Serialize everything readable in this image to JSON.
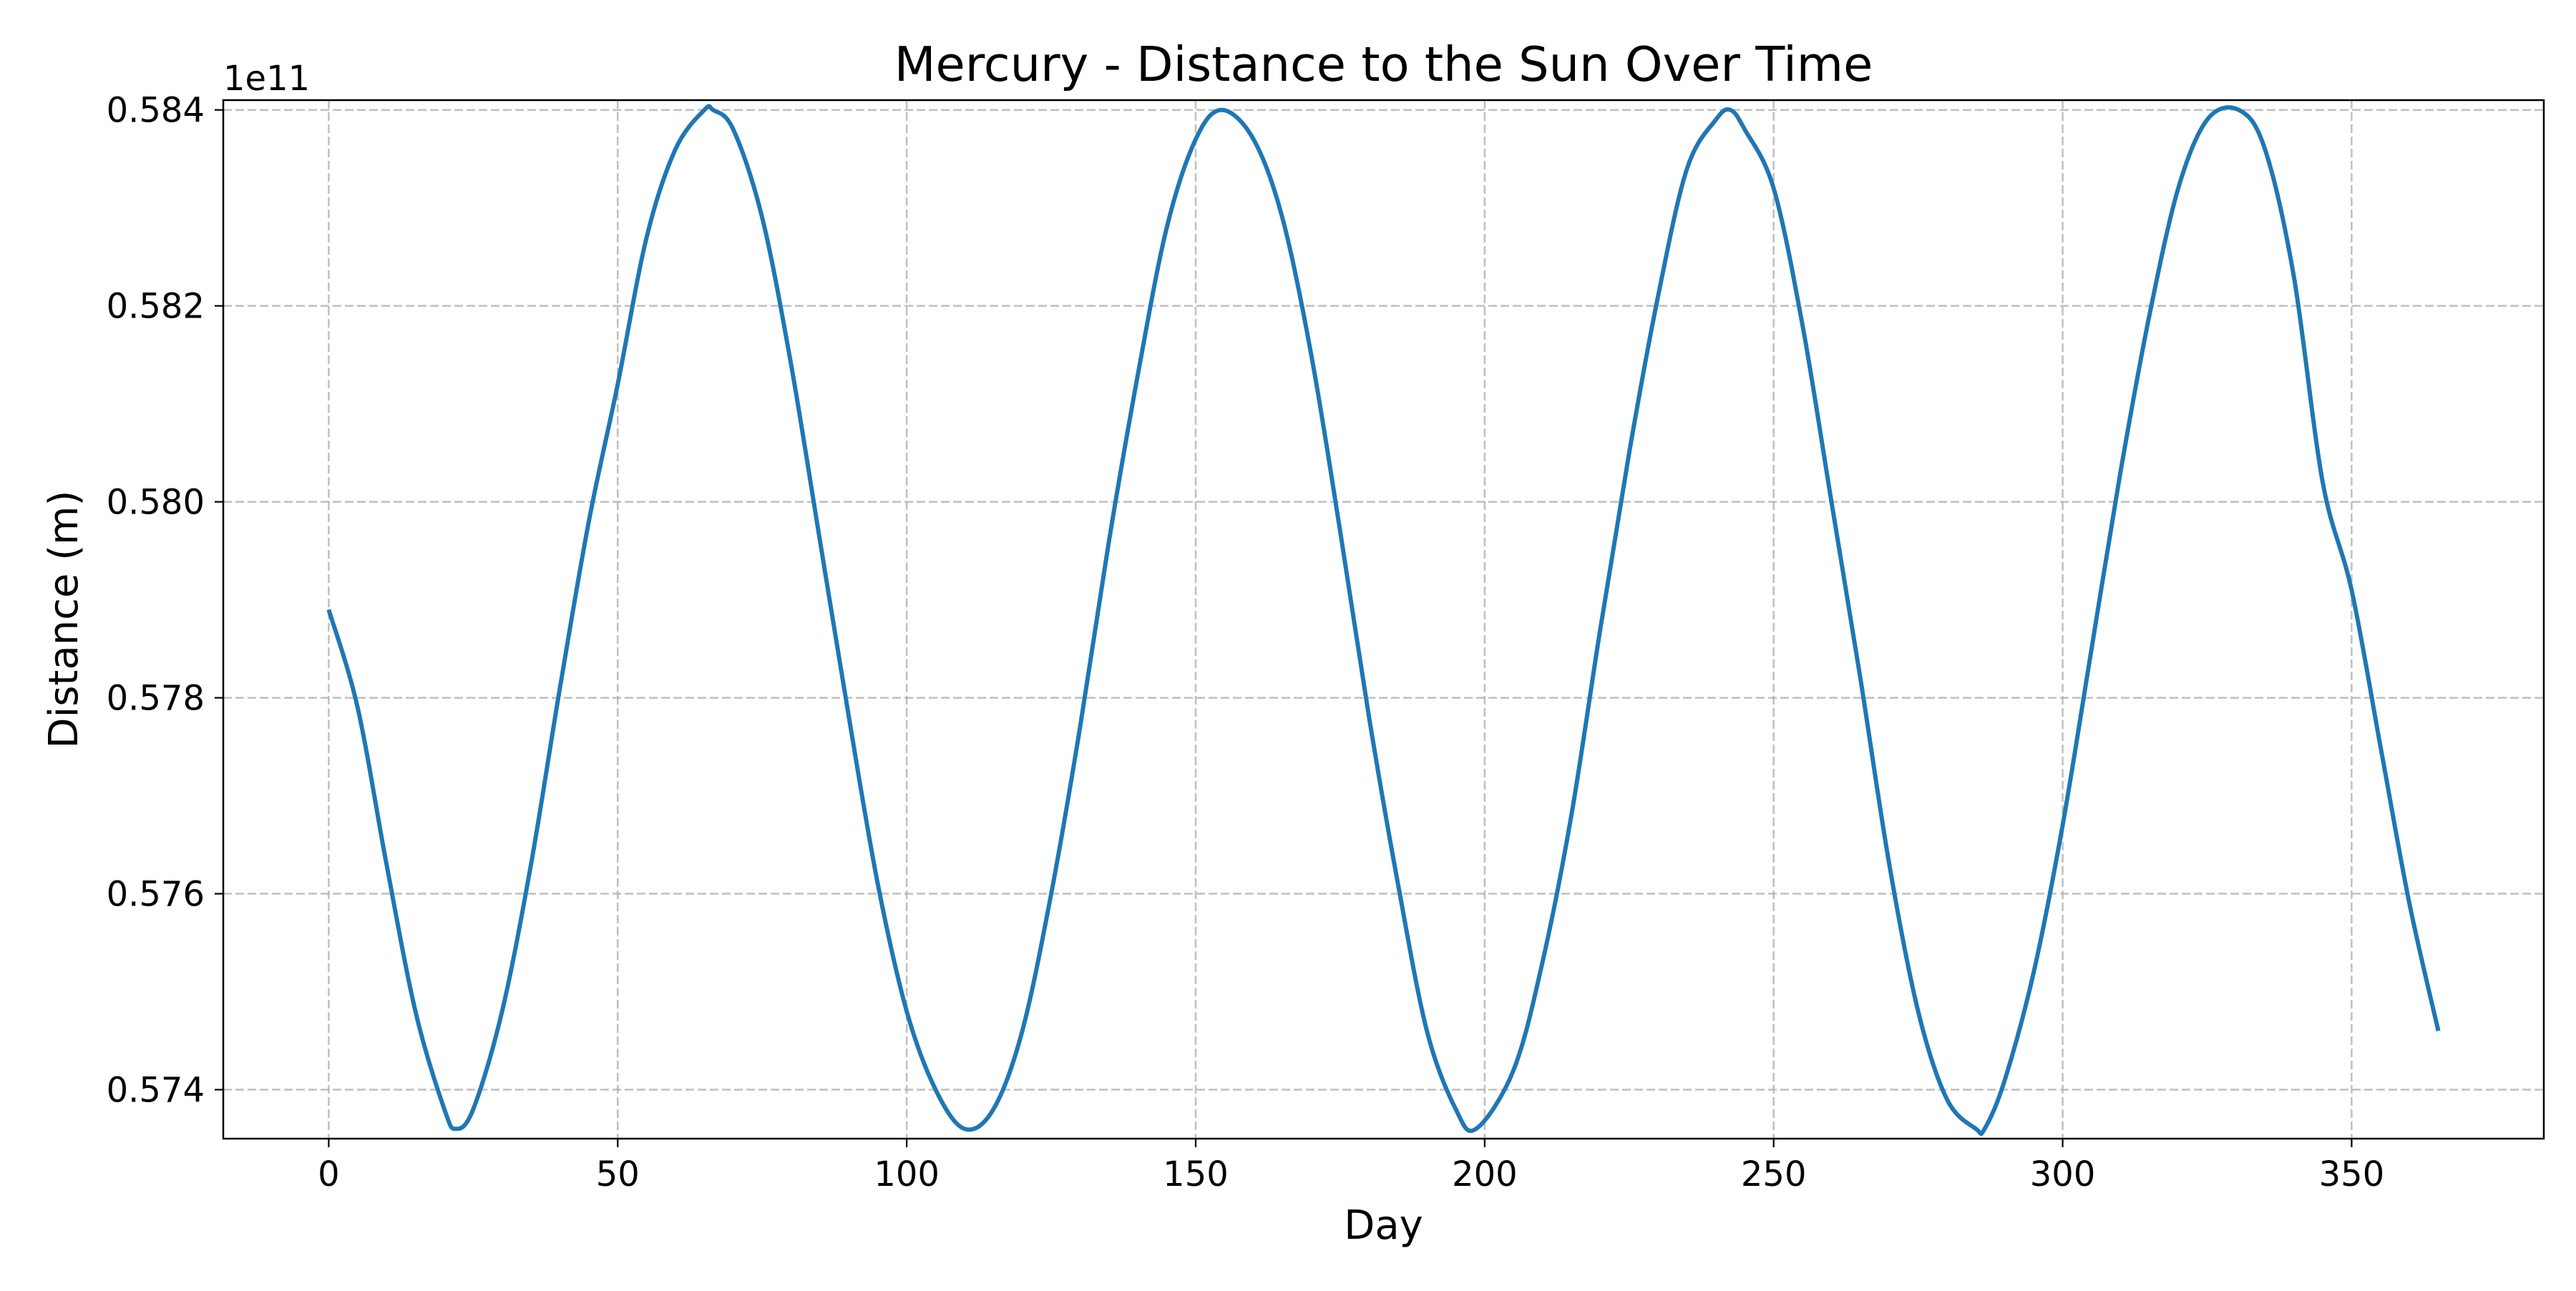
{
  "chart_data": {
    "type": "line",
    "title": "Mercury - Distance to the Sun Over Time",
    "xlabel": "Day",
    "ylabel": "Distance (m)",
    "y_offset_label": "1e11",
    "y_scale_factor": 100000000000.0,
    "xlim": [
      -18.25,
      383.25
    ],
    "ylim": [
      0.5735,
      0.5841
    ],
    "x_ticks": [
      0,
      50,
      100,
      150,
      200,
      250,
      300,
      350
    ],
    "x_tick_labels": [
      "0",
      "50",
      "100",
      "150",
      "200",
      "250",
      "300",
      "350"
    ],
    "y_ticks": [
      0.574,
      0.576,
      0.578,
      0.58,
      0.582,
      0.584
    ],
    "y_tick_labels": [
      "0.574",
      "0.576",
      "0.578",
      "0.580",
      "0.582",
      "0.584"
    ],
    "grid": true,
    "series": [
      {
        "color": "#1f77b4",
        "x": [
          0,
          5,
          10,
          15,
          20,
          22,
          25,
          30,
          35,
          40,
          45,
          50,
          55,
          60,
          65,
          66.5,
          70,
          75,
          80,
          85,
          90,
          95,
          100,
          105,
          110,
          115,
          120,
          125,
          130,
          135,
          140,
          145,
          150,
          154.5,
          160,
          165,
          170,
          175,
          180,
          185,
          190,
          195,
          198.5,
          205,
          210,
          215,
          220,
          225,
          230,
          235,
          240,
          242.5,
          245,
          250,
          255,
          260,
          265,
          270,
          275,
          280,
          285,
          286.5,
          290,
          295,
          300,
          305,
          310,
          315,
          320,
          325,
          330.5,
          335,
          340,
          345,
          350,
          355,
          360,
          365
        ],
        "y": [
          0.5789,
          0.5779,
          0.5763,
          0.5748,
          0.5738,
          0.5736,
          0.5738,
          0.5748,
          0.5763,
          0.5781,
          0.5798,
          0.5812,
          0.5827,
          0.5836,
          0.584,
          0.584,
          0.5838,
          0.5829,
          0.5814,
          0.5796,
          0.5778,
          0.5761,
          0.5748,
          0.574,
          0.5736,
          0.5738,
          0.5746,
          0.576,
          0.5777,
          0.5796,
          0.5813,
          0.5828,
          0.5837,
          0.584,
          0.5837,
          0.5829,
          0.5815,
          0.5797,
          0.5778,
          0.5761,
          0.5746,
          0.5738,
          0.5736,
          0.5742,
          0.5753,
          0.5768,
          0.5787,
          0.5805,
          0.5821,
          0.5834,
          0.5839,
          0.584,
          0.5838,
          0.5832,
          0.5818,
          0.58,
          0.5782,
          0.5763,
          0.5748,
          0.5739,
          0.5736,
          0.5736,
          0.5741,
          0.5752,
          0.5767,
          0.5785,
          0.5803,
          0.5819,
          0.5832,
          0.5839,
          0.584,
          0.5836,
          0.5823,
          0.5802,
          0.5791,
          0.5775,
          0.5759,
          0.5746
        ]
      }
    ]
  }
}
